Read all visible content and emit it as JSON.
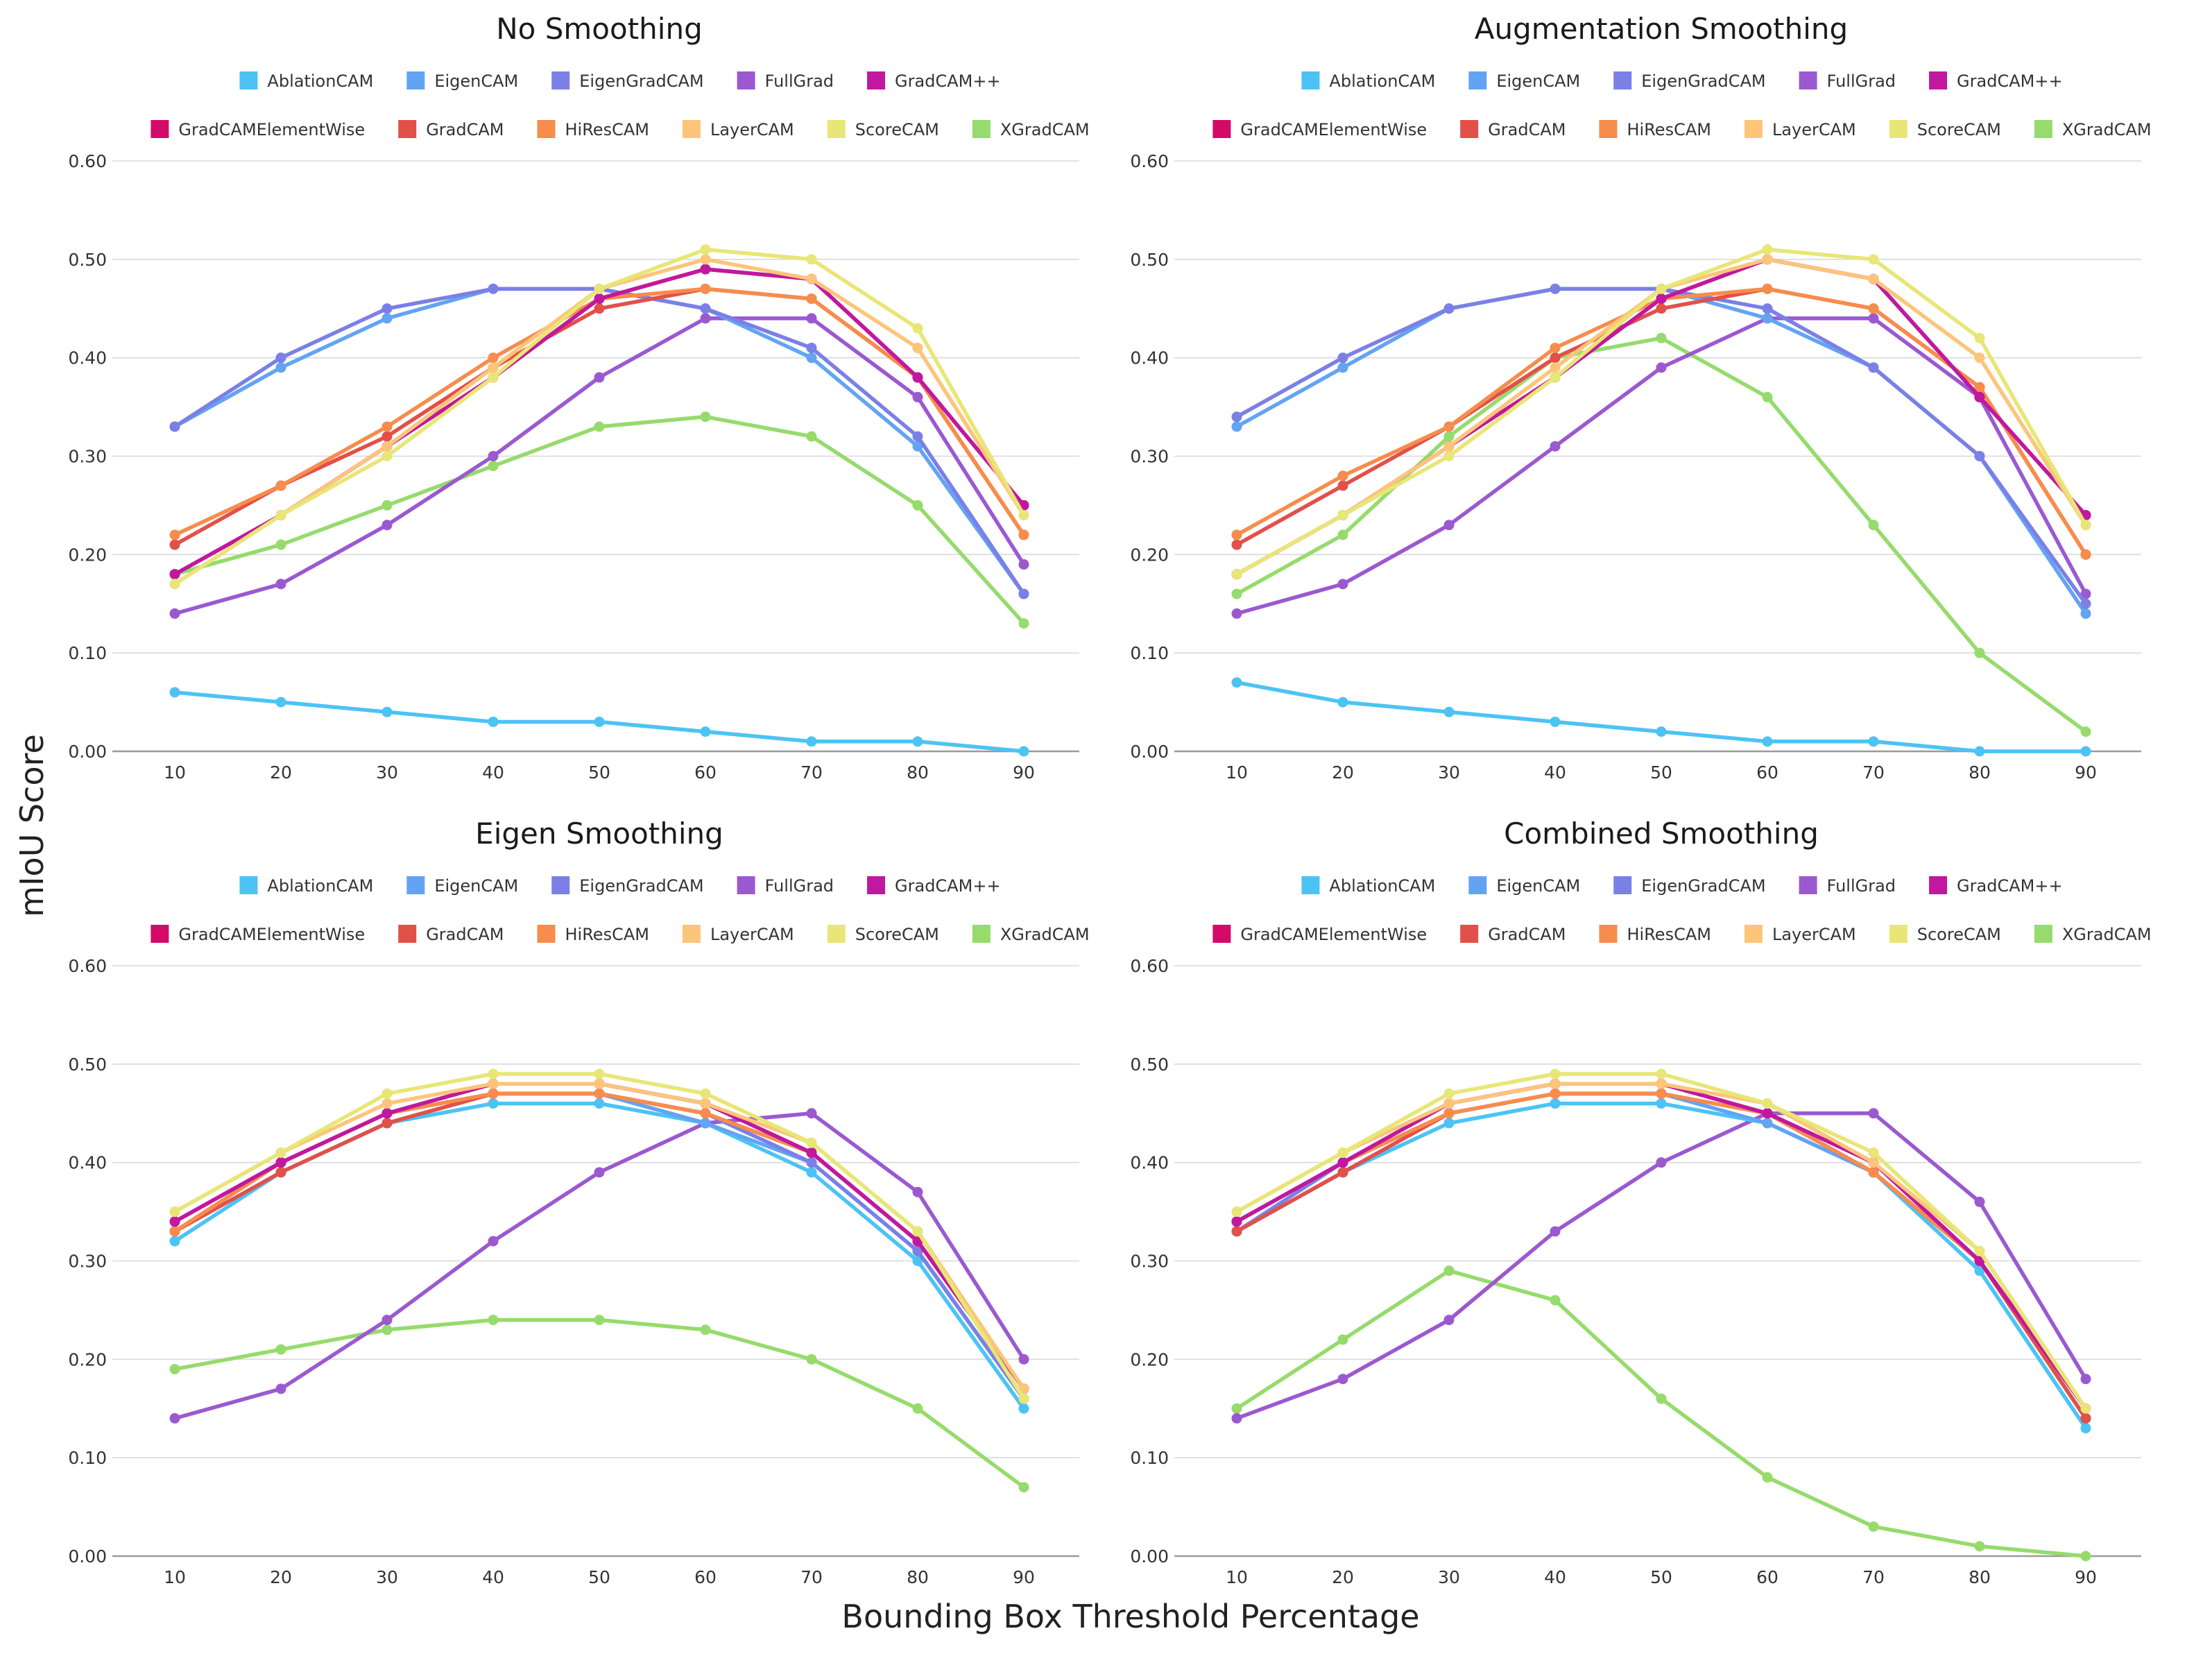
{
  "figure": {
    "ylabel": "mIoU Score",
    "xlabel": "Bounding Box Threshold Percentage"
  },
  "legend_order": [
    "AblationCAM",
    "EigenCAM",
    "EigenGradCAM",
    "FullGrad",
    "GradCAM++",
    "GradCAMElementWise",
    "GradCAM",
    "HiResCAM",
    "LayerCAM",
    "ScoreCAM",
    "XGradCAM"
  ],
  "series_colors": {
    "AblationCAM": "#4cc3f4",
    "EigenCAM": "#63a4f2",
    "EigenGradCAM": "#7b80e6",
    "FullGrad": "#9b59d0",
    "GradCAM++": "#c0189e",
    "GradCAMElementWise": "#d40a68",
    "GradCAM": "#e2504a",
    "HiResCAM": "#f78c4c",
    "LayerCAM": "#fcc57a",
    "ScoreCAM": "#e8e676",
    "XGradCAM": "#96db6c"
  },
  "chart_data": [
    {
      "type": "line",
      "title": "No Smoothing",
      "x": [
        10,
        20,
        30,
        40,
        50,
        60,
        70,
        80,
        90
      ],
      "ylim": [
        0,
        0.6
      ],
      "yticks": [
        "0.00",
        "0.10",
        "0.20",
        "0.30",
        "0.40",
        "0.50",
        "0.60"
      ],
      "grid": true,
      "legend_position": "top",
      "series": [
        {
          "name": "AblationCAM",
          "values": [
            0.06,
            0.05,
            0.04,
            0.03,
            0.03,
            0.02,
            0.01,
            0.01,
            0.0
          ]
        },
        {
          "name": "EigenCAM",
          "values": [
            0.33,
            0.39,
            0.44,
            0.47,
            0.47,
            0.45,
            0.4,
            0.31,
            0.16
          ]
        },
        {
          "name": "EigenGradCAM",
          "values": [
            0.33,
            0.4,
            0.45,
            0.47,
            0.47,
            0.45,
            0.41,
            0.32,
            0.16
          ]
        },
        {
          "name": "FullGrad",
          "values": [
            0.14,
            0.17,
            0.23,
            0.3,
            0.38,
            0.44,
            0.44,
            0.36,
            0.19
          ]
        },
        {
          "name": "GradCAM++",
          "values": [
            0.18,
            0.24,
            0.31,
            0.38,
            0.46,
            0.49,
            0.48,
            0.38,
            0.25
          ]
        },
        {
          "name": "GradCAMElementWise",
          "values": [
            0.18,
            0.24,
            0.31,
            0.38,
            0.46,
            0.49,
            0.48,
            0.38,
            0.25
          ]
        },
        {
          "name": "GradCAM",
          "values": [
            0.21,
            0.27,
            0.32,
            0.39,
            0.45,
            0.47,
            0.46,
            0.38,
            0.22
          ]
        },
        {
          "name": "HiResCAM",
          "values": [
            0.22,
            0.27,
            0.33,
            0.4,
            0.46,
            0.47,
            0.46,
            0.38,
            0.22
          ]
        },
        {
          "name": "LayerCAM",
          "values": [
            0.17,
            0.24,
            0.31,
            0.39,
            0.47,
            0.5,
            0.48,
            0.41,
            0.24
          ]
        },
        {
          "name": "ScoreCAM",
          "values": [
            0.17,
            0.24,
            0.3,
            0.38,
            0.47,
            0.51,
            0.5,
            0.43,
            0.24
          ]
        },
        {
          "name": "XGradCAM",
          "values": [
            0.18,
            0.21,
            0.25,
            0.29,
            0.33,
            0.34,
            0.32,
            0.25,
            0.13
          ]
        }
      ]
    },
    {
      "type": "line",
      "title": "Augmentation Smoothing",
      "x": [
        10,
        20,
        30,
        40,
        50,
        60,
        70,
        80,
        90
      ],
      "ylim": [
        0,
        0.6
      ],
      "yticks": [
        "0.00",
        "0.10",
        "0.20",
        "0.30",
        "0.40",
        "0.50",
        "0.60"
      ],
      "grid": true,
      "legend_position": "top",
      "series": [
        {
          "name": "AblationCAM",
          "values": [
            0.07,
            0.05,
            0.04,
            0.03,
            0.02,
            0.01,
            0.01,
            0.0,
            0.0
          ]
        },
        {
          "name": "EigenCAM",
          "values": [
            0.33,
            0.39,
            0.45,
            0.47,
            0.47,
            0.44,
            0.39,
            0.3,
            0.14
          ]
        },
        {
          "name": "EigenGradCAM",
          "values": [
            0.34,
            0.4,
            0.45,
            0.47,
            0.47,
            0.45,
            0.39,
            0.3,
            0.15
          ]
        },
        {
          "name": "FullGrad",
          "values": [
            0.14,
            0.17,
            0.23,
            0.31,
            0.39,
            0.44,
            0.44,
            0.36,
            0.16
          ]
        },
        {
          "name": "GradCAM++",
          "values": [
            0.18,
            0.24,
            0.31,
            0.38,
            0.46,
            0.5,
            0.48,
            0.36,
            0.24
          ]
        },
        {
          "name": "GradCAMElementWise",
          "values": [
            0.18,
            0.24,
            0.31,
            0.38,
            0.46,
            0.5,
            0.48,
            0.36,
            0.24
          ]
        },
        {
          "name": "GradCAM",
          "values": [
            0.21,
            0.27,
            0.33,
            0.4,
            0.45,
            0.47,
            0.45,
            0.37,
            0.2
          ]
        },
        {
          "name": "HiResCAM",
          "values": [
            0.22,
            0.28,
            0.33,
            0.41,
            0.46,
            0.47,
            0.45,
            0.37,
            0.2
          ]
        },
        {
          "name": "LayerCAM",
          "values": [
            0.18,
            0.24,
            0.31,
            0.39,
            0.47,
            0.5,
            0.48,
            0.4,
            0.23
          ]
        },
        {
          "name": "ScoreCAM",
          "values": [
            0.18,
            0.24,
            0.3,
            0.38,
            0.47,
            0.51,
            0.5,
            0.42,
            0.23
          ]
        },
        {
          "name": "XGradCAM",
          "values": [
            0.16,
            0.22,
            0.32,
            0.4,
            0.42,
            0.36,
            0.23,
            0.1,
            0.02
          ]
        }
      ]
    },
    {
      "type": "line",
      "title": "Eigen Smoothing",
      "x": [
        10,
        20,
        30,
        40,
        50,
        60,
        70,
        80,
        90
      ],
      "ylim": [
        0,
        0.6
      ],
      "yticks": [
        "0.00",
        "0.10",
        "0.20",
        "0.30",
        "0.40",
        "0.50",
        "0.60"
      ],
      "grid": true,
      "legend_position": "top",
      "series": [
        {
          "name": "AblationCAM",
          "values": [
            0.32,
            0.39,
            0.44,
            0.46,
            0.46,
            0.44,
            0.39,
            0.3,
            0.15
          ]
        },
        {
          "name": "EigenCAM",
          "values": [
            0.33,
            0.39,
            0.44,
            0.47,
            0.47,
            0.44,
            0.4,
            0.31,
            0.16
          ]
        },
        {
          "name": "EigenGradCAM",
          "values": [
            0.33,
            0.4,
            0.45,
            0.47,
            0.47,
            0.45,
            0.4,
            0.31,
            0.16
          ]
        },
        {
          "name": "FullGrad",
          "values": [
            0.14,
            0.17,
            0.24,
            0.32,
            0.39,
            0.44,
            0.45,
            0.37,
            0.2
          ]
        },
        {
          "name": "GradCAM++",
          "values": [
            0.34,
            0.4,
            0.45,
            0.48,
            0.48,
            0.46,
            0.41,
            0.32,
            0.17
          ]
        },
        {
          "name": "GradCAMElementWise",
          "values": [
            0.34,
            0.4,
            0.45,
            0.48,
            0.48,
            0.46,
            0.41,
            0.32,
            0.17
          ]
        },
        {
          "name": "GradCAM",
          "values": [
            0.33,
            0.39,
            0.44,
            0.47,
            0.47,
            0.45,
            0.41,
            0.32,
            0.17
          ]
        },
        {
          "name": "HiResCAM",
          "values": [
            0.33,
            0.4,
            0.45,
            0.47,
            0.47,
            0.45,
            0.41,
            0.32,
            0.17
          ]
        },
        {
          "name": "LayerCAM",
          "values": [
            0.35,
            0.41,
            0.46,
            0.48,
            0.48,
            0.46,
            0.42,
            0.33,
            0.17
          ]
        },
        {
          "name": "ScoreCAM",
          "values": [
            0.35,
            0.41,
            0.47,
            0.49,
            0.49,
            0.47,
            0.42,
            0.33,
            0.16
          ]
        },
        {
          "name": "XGradCAM",
          "values": [
            0.19,
            0.21,
            0.23,
            0.24,
            0.24,
            0.23,
            0.2,
            0.15,
            0.07
          ]
        }
      ]
    },
    {
      "type": "line",
      "title": "Combined Smoothing",
      "x": [
        10,
        20,
        30,
        40,
        50,
        60,
        70,
        80,
        90
      ],
      "ylim": [
        0,
        0.6
      ],
      "yticks": [
        "0.00",
        "0.10",
        "0.20",
        "0.30",
        "0.40",
        "0.50",
        "0.60"
      ],
      "grid": true,
      "legend_position": "top",
      "series": [
        {
          "name": "AblationCAM",
          "values": [
            0.33,
            0.39,
            0.44,
            0.46,
            0.46,
            0.44,
            0.39,
            0.29,
            0.13
          ]
        },
        {
          "name": "EigenCAM",
          "values": [
            0.33,
            0.39,
            0.45,
            0.47,
            0.47,
            0.44,
            0.39,
            0.3,
            0.14
          ]
        },
        {
          "name": "EigenGradCAM",
          "values": [
            0.33,
            0.4,
            0.45,
            0.47,
            0.47,
            0.45,
            0.39,
            0.3,
            0.14
          ]
        },
        {
          "name": "FullGrad",
          "values": [
            0.14,
            0.18,
            0.24,
            0.33,
            0.4,
            0.45,
            0.45,
            0.36,
            0.18
          ]
        },
        {
          "name": "GradCAM++",
          "values": [
            0.34,
            0.4,
            0.46,
            0.48,
            0.48,
            0.45,
            0.4,
            0.3,
            0.15
          ]
        },
        {
          "name": "GradCAMElementWise",
          "values": [
            0.34,
            0.4,
            0.46,
            0.48,
            0.48,
            0.45,
            0.4,
            0.3,
            0.15
          ]
        },
        {
          "name": "GradCAM",
          "values": [
            0.33,
            0.39,
            0.45,
            0.47,
            0.47,
            0.45,
            0.39,
            0.3,
            0.14
          ]
        },
        {
          "name": "HiResCAM",
          "values": [
            0.34,
            0.4,
            0.45,
            0.47,
            0.47,
            0.45,
            0.39,
            0.3,
            0.15
          ]
        },
        {
          "name": "LayerCAM",
          "values": [
            0.35,
            0.41,
            0.46,
            0.48,
            0.48,
            0.46,
            0.4,
            0.31,
            0.15
          ]
        },
        {
          "name": "ScoreCAM",
          "values": [
            0.35,
            0.41,
            0.47,
            0.49,
            0.49,
            0.46,
            0.41,
            0.31,
            0.15
          ]
        },
        {
          "name": "XGradCAM",
          "values": [
            0.15,
            0.22,
            0.29,
            0.26,
            0.16,
            0.08,
            0.03,
            0.01,
            0.0
          ]
        }
      ]
    }
  ]
}
